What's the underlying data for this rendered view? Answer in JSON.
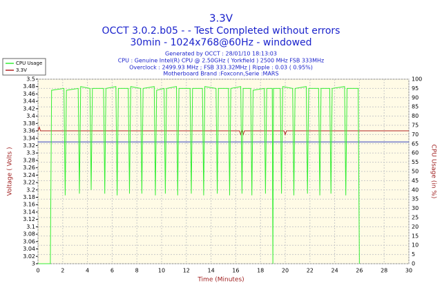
{
  "chart_data": {
    "type": "line",
    "title": "3.3V",
    "subtitle": "OCCT 3.0.2.b05 -  - Test Completed without errors",
    "subtitle2": "30min - 1024x768@60Hz - windowed",
    "info": [
      "Generated by OCCT : 28/01/10 18:13:03",
      "CPU : Genuine Intel(R) CPU @ 2.50GHz ( Yorkfield ) 2500 MHz FSB 333MHz",
      "Overclock : 2499.93 MHz ; FSB 333.32MHz | Ripple : 0.03 ( 0.95%)",
      "Motherboard Brand :Foxconn,Serie :MARS"
    ],
    "xlabel": "Time (Minutes)",
    "ylabel": "Voltage ( Volts )",
    "y2label": "CPU Usage (in %)",
    "xlim": [
      0,
      30
    ],
    "xticks": [
      0,
      2,
      4,
      6,
      8,
      10,
      12,
      14,
      16,
      18,
      20,
      22,
      24,
      26,
      28,
      30
    ],
    "ylim": [
      3.0,
      3.5
    ],
    "yticks": [
      3,
      3.02,
      3.04,
      3.06,
      3.08,
      3.1,
      3.12,
      3.14,
      3.16,
      3.18,
      3.2,
      3.22,
      3.24,
      3.26,
      3.28,
      3.3,
      3.32,
      3.34,
      3.36,
      3.38,
      3.4,
      3.42,
      3.44,
      3.46,
      3.48,
      3.5
    ],
    "y2lim": [
      0,
      100
    ],
    "y2ticks": [
      0,
      5,
      10,
      15,
      20,
      25,
      30,
      35,
      40,
      45,
      50,
      55,
      60,
      65,
      70,
      75,
      80,
      85,
      90,
      95,
      100
    ],
    "grid": true,
    "legend": "top-left",
    "reference_line": {
      "value": 3.33,
      "color": "#3040c0"
    },
    "series": [
      {
        "name": "CPU Usage",
        "color": "#33ee33",
        "axis": "y2",
        "x": [
          0,
          1,
          1.1,
          2.1,
          2.2,
          2.3,
          3.25,
          3.35,
          3.45,
          4.2,
          4.3,
          4.4,
          5.3,
          5.4,
          5.5,
          6.3,
          6.4,
          6.5,
          7.3,
          7.4,
          7.5,
          8.3,
          8.4,
          8.5,
          9.4,
          9.5,
          9.6,
          10.2,
          10.3,
          10.4,
          11.2,
          11.3,
          11.4,
          12.3,
          12.4,
          12.5,
          13.3,
          13.4,
          13.5,
          14.4,
          14.5,
          14.6,
          15.4,
          15.5,
          15.6,
          16.4,
          16.5,
          16.6,
          17.2,
          17.3,
          17.4,
          18.3,
          18.4,
          18.5,
          18.95,
          19.0,
          19.05,
          19.6,
          19.7,
          19.8,
          20.6,
          20.7,
          20.8,
          21.7,
          21.8,
          21.9,
          22.7,
          22.8,
          22.9,
          23.6,
          23.7,
          23.8,
          24.8,
          24.9,
          25.0,
          25.9,
          26.0
        ],
        "values": [
          0,
          0,
          94,
          95,
          37,
          94,
          95,
          38,
          96,
          95,
          40,
          95,
          95,
          38,
          95,
          96,
          37,
          95,
          95,
          38,
          96,
          95,
          38,
          95,
          96,
          37,
          94,
          95,
          38,
          95,
          96,
          37,
          95,
          95,
          38,
          95,
          95,
          37,
          96,
          95,
          38,
          95,
          95,
          37,
          95,
          96,
          38,
          95,
          95,
          37,
          94,
          95,
          38,
          95,
          95,
          0,
          95,
          95,
          38,
          96,
          95,
          37,
          95,
          96,
          38,
          95,
          95,
          37,
          95,
          95,
          38,
          95,
          96,
          37,
          95,
          95,
          0
        ]
      },
      {
        "name": "3.3V",
        "color": "#b02020",
        "axis": "y",
        "x": [
          0,
          0.1,
          0.2,
          14,
          16.3,
          16.4,
          16.5,
          16.6,
          16.7,
          19.9,
          20.0,
          20.1,
          30
        ],
        "values": [
          3.36,
          3.37,
          3.36,
          3.36,
          3.36,
          3.35,
          3.36,
          3.35,
          3.36,
          3.36,
          3.35,
          3.36,
          3.36
        ]
      }
    ]
  }
}
